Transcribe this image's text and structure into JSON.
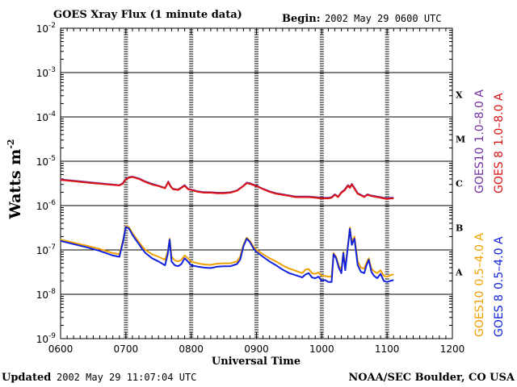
{
  "header": {
    "title": "GOES Xray Flux (1 minute data)",
    "begin_label": "Begin:",
    "begin_value": "2002 May 29 0600 UTC"
  },
  "footer": {
    "updated_label": "Updated",
    "updated_value": "2002 May 29 11:07:04 UTC",
    "credit": "NOAA/SEC Boulder, CO USA"
  },
  "chart_data": {
    "type": "line",
    "title": "GOES Xray Flux (1 minute data)",
    "xlabel": "Universal Time",
    "ylabel": "Watts m",
    "ylabel_exponent": "-2",
    "x_range": [
      600,
      1200
    ],
    "x_ticks": [
      "0600",
      "0700",
      "0800",
      "0900",
      "1000",
      "1100",
      "1200"
    ],
    "y_scale": "log",
    "y_range_exponent": [
      -9,
      -2
    ],
    "y_ticks": [
      {
        "base": "10",
        "exp": "-2"
      },
      {
        "base": "10",
        "exp": "-3"
      },
      {
        "base": "10",
        "exp": "-4"
      },
      {
        "base": "10",
        "exp": "-5"
      },
      {
        "base": "10",
        "exp": "-6"
      },
      {
        "base": "10",
        "exp": "-7"
      },
      {
        "base": "10",
        "exp": "-8"
      },
      {
        "base": "10",
        "exp": "-9"
      }
    ],
    "flare_classes": [
      {
        "label": "X",
        "exp": -4
      },
      {
        "label": "M",
        "exp": -5
      },
      {
        "label": "C",
        "exp": -6
      },
      {
        "label": "B",
        "exp": -7
      },
      {
        "label": "A",
        "exp": -8
      }
    ],
    "legend": {
      "right_top": [
        {
          "text_a": "GOES10",
          "text_b": "1.0–8.0 A",
          "color": "#7030a0"
        },
        {
          "text_a": "GOES 8",
          "text_b": "1.0–8.0 A",
          "color": "#dd1111"
        }
      ],
      "right_bottom": [
        {
          "text_a": "GOES10",
          "text_b": "0.5–4.0 A",
          "color": "#f0a000"
        },
        {
          "text_a": "GOES 8",
          "text_b": "0.5–4.0 A",
          "color": "#1122dd"
        }
      ]
    },
    "series": [
      {
        "name": "GOES10 1.0–8.0 A",
        "color": "#7030a0",
        "x": [
          600,
          650,
          690,
          695,
          700,
          705,
          710,
          720,
          730,
          740,
          750,
          760,
          765,
          768,
          772,
          780,
          790,
          795,
          800,
          810,
          820,
          830,
          840,
          850,
          860,
          870,
          880,
          885,
          890,
          900,
          910,
          920,
          930,
          940,
          950,
          960,
          970,
          980,
          990,
          1000,
          1010,
          1015,
          1020,
          1025,
          1030,
          1035,
          1040,
          1043,
          1046,
          1050,
          1055,
          1060,
          1065,
          1070,
          1075,
          1080,
          1085,
          1090,
          1095,
          1100,
          1105,
          1110
        ],
        "y": [
          3.9e-06,
          3.3e-06,
          2.9e-06,
          3.2e-06,
          4e-06,
          4.4e-06,
          4.5e-06,
          4.1e-06,
          3.5e-06,
          3.1e-06,
          2.8e-06,
          2.5e-06,
          3.5e-06,
          2.8e-06,
          2.4e-06,
          2.3e-06,
          2.9e-06,
          2.4e-06,
          2.3e-06,
          2.1e-06,
          2e-06,
          2e-06,
          1.95e-06,
          1.95e-06,
          2e-06,
          2.2e-06,
          2.8e-06,
          3.3e-06,
          3.2e-06,
          2.8e-06,
          2.4e-06,
          2.1e-06,
          1.9e-06,
          1.8e-06,
          1.7e-06,
          1.6e-06,
          1.6e-06,
          1.6e-06,
          1.55e-06,
          1.5e-06,
          1.5e-06,
          1.55e-06,
          1.8e-06,
          1.6e-06,
          2e-06,
          2.3e-06,
          2.9e-06,
          2.6e-06,
          3.1e-06,
          2.5e-06,
          1.9e-06,
          1.75e-06,
          1.6e-06,
          1.8e-06,
          1.7e-06,
          1.65e-06,
          1.6e-06,
          1.55e-06,
          1.5e-06,
          1.45e-06,
          1.5e-06,
          1.5e-06
        ]
      },
      {
        "name": "GOES 8 1.0–8.0 A",
        "color": "#dd1111",
        "x": [
          600,
          650,
          690,
          695,
          700,
          705,
          710,
          720,
          730,
          740,
          750,
          760,
          765,
          768,
          772,
          780,
          790,
          795,
          800,
          810,
          820,
          830,
          840,
          850,
          860,
          870,
          880,
          885,
          890,
          900,
          910,
          920,
          930,
          940,
          950,
          960,
          970,
          980,
          990,
          1000,
          1010,
          1015,
          1020,
          1025,
          1030,
          1035,
          1040,
          1043,
          1046,
          1050,
          1055,
          1060,
          1065,
          1070,
          1075,
          1080,
          1085,
          1090,
          1095,
          1100,
          1105,
          1110
        ],
        "y": [
          3.8e-06,
          3.2e-06,
          2.85e-06,
          3.1e-06,
          3.9e-06,
          4.3e-06,
          4.4e-06,
          4e-06,
          3.4e-06,
          3e-06,
          2.75e-06,
          2.45e-06,
          3.4e-06,
          2.75e-06,
          2.35e-06,
          2.25e-06,
          2.8e-06,
          2.35e-06,
          2.25e-06,
          2.05e-06,
          1.95e-06,
          1.95e-06,
          1.9e-06,
          1.9e-06,
          1.95e-06,
          2.15e-06,
          2.75e-06,
          3.2e-06,
          3.1e-06,
          2.75e-06,
          2.35e-06,
          2.05e-06,
          1.85e-06,
          1.75e-06,
          1.65e-06,
          1.55e-06,
          1.55e-06,
          1.55e-06,
          1.5e-06,
          1.45e-06,
          1.45e-06,
          1.5e-06,
          1.75e-06,
          1.55e-06,
          1.95e-06,
          2.2e-06,
          2.8e-06,
          2.5e-06,
          3e-06,
          2.4e-06,
          1.85e-06,
          1.7e-06,
          1.55e-06,
          1.75e-06,
          1.65e-06,
          1.6e-06,
          1.55e-06,
          1.5e-06,
          1.45e-06,
          1.4e-06,
          1.45e-06,
          1.45e-06
        ]
      },
      {
        "name": "GOES10 0.5–4.0 A",
        "color": "#f0a000",
        "x": [
          600,
          620,
          640,
          660,
          680,
          690,
          695,
          700,
          705,
          710,
          715,
          720,
          725,
          730,
          740,
          750,
          760,
          764,
          767,
          770,
          775,
          780,
          785,
          790,
          795,
          800,
          810,
          820,
          830,
          840,
          850,
          860,
          870,
          875,
          880,
          885,
          890,
          895,
          900,
          910,
          920,
          930,
          940,
          950,
          960,
          970,
          975,
          980,
          985,
          990,
          995,
          1000,
          1005,
          1010,
          1015,
          1018,
          1022,
          1026,
          1030,
          1033,
          1036,
          1040,
          1043,
          1046,
          1050,
          1055,
          1060,
          1065,
          1068,
          1072,
          1076,
          1080,
          1085,
          1090,
          1095,
          1100,
          1105,
          1110
        ],
        "y": [
          1.7e-07,
          1.45e-07,
          1.25e-07,
          1.05e-07,
          8.5e-08,
          8e-08,
          1.5e-07,
          3.5e-07,
          3.2e-07,
          2.4e-07,
          1.9e-07,
          1.5e-07,
          1.2e-07,
          1e-07,
          8e-08,
          7e-08,
          6e-08,
          9e-08,
          1.8e-07,
          7e-08,
          5.8e-08,
          5.5e-08,
          6e-08,
          7.5e-08,
          6.5e-08,
          5.5e-08,
          5e-08,
          4.7e-08,
          4.6e-08,
          4.9e-08,
          5e-08,
          5e-08,
          5.5e-08,
          7e-08,
          1.3e-07,
          1.9e-07,
          1.6e-07,
          1.2e-07,
          1e-07,
          8e-08,
          6.5e-08,
          5.5e-08,
          4.5e-08,
          3.8e-08,
          3.4e-08,
          3e-08,
          3.6e-08,
          3.7e-08,
          3e-08,
          2.9e-08,
          3.1e-08,
          2.6e-08,
          2.6e-08,
          2.5e-08,
          2.5e-08,
          8.5e-08,
          7e-08,
          4.5e-08,
          3.5e-08,
          9e-08,
          4e-08,
          1.3e-07,
          3.2e-07,
          1.5e-07,
          2e-07,
          5.5e-08,
          4e-08,
          3.8e-08,
          5e-08,
          6.5e-08,
          3.8e-08,
          3.3e-08,
          3e-08,
          3.5e-08,
          2.6e-08,
          2.5e-08,
          2.7e-08,
          2.8e-08
        ]
      },
      {
        "name": "GOES 8 0.5–4.0 A",
        "color": "#1122dd",
        "x": [
          600,
          620,
          640,
          660,
          680,
          690,
          695,
          700,
          705,
          710,
          715,
          720,
          725,
          730,
          740,
          750,
          760,
          764,
          767,
          770,
          775,
          780,
          785,
          790,
          795,
          800,
          810,
          820,
          830,
          840,
          850,
          860,
          870,
          875,
          880,
          885,
          890,
          895,
          900,
          910,
          920,
          930,
          940,
          950,
          960,
          970,
          975,
          980,
          985,
          990,
          995,
          1000,
          1005,
          1010,
          1015,
          1018,
          1022,
          1026,
          1030,
          1033,
          1036,
          1040,
          1043,
          1046,
          1050,
          1055,
          1060,
          1065,
          1068,
          1072,
          1076,
          1080,
          1085,
          1090,
          1095,
          1100,
          1105,
          1110
        ],
        "y": [
          1.6e-07,
          1.35e-07,
          1.15e-07,
          9.5e-08,
          7.5e-08,
          7e-08,
          1.4e-07,
          3.3e-07,
          3e-07,
          2.2e-07,
          1.7e-07,
          1.35e-07,
          1.05e-07,
          8.5e-08,
          6.5e-08,
          5.5e-08,
          4.5e-08,
          8e-08,
          1.7e-07,
          5.5e-08,
          4.5e-08,
          4.3e-08,
          4.8e-08,
          6.5e-08,
          5.5e-08,
          4.5e-08,
          4.2e-08,
          4e-08,
          3.9e-08,
          4.2e-08,
          4.3e-08,
          4.3e-08,
          4.8e-08,
          6e-08,
          1.2e-07,
          1.8e-07,
          1.5e-07,
          1.1e-07,
          9e-08,
          7e-08,
          5.5e-08,
          4.5e-08,
          3.6e-08,
          3e-08,
          2.7e-08,
          2.4e-08,
          2.8e-08,
          3e-08,
          2.4e-08,
          2.3e-08,
          2.5e-08,
          2e-08,
          2.1e-08,
          1.9e-08,
          1.9e-08,
          8e-08,
          6.5e-08,
          4e-08,
          3e-08,
          8.5e-08,
          3.5e-08,
          1.2e-07,
          3e-07,
          1.3e-07,
          1.8e-07,
          4.5e-08,
          3.2e-08,
          3e-08,
          4.3e-08,
          6e-08,
          3.2e-08,
          2.6e-08,
          2.3e-08,
          2.9e-08,
          2e-08,
          1.9e-08,
          2e-08,
          2.1e-08
        ]
      }
    ],
    "grid": {
      "horizontal_lines_at_exp": [
        -8,
        -7,
        -6,
        -5,
        -4,
        -3
      ],
      "vertical_dashed_at_x": [
        700,
        800,
        900,
        1000,
        1100
      ]
    }
  }
}
